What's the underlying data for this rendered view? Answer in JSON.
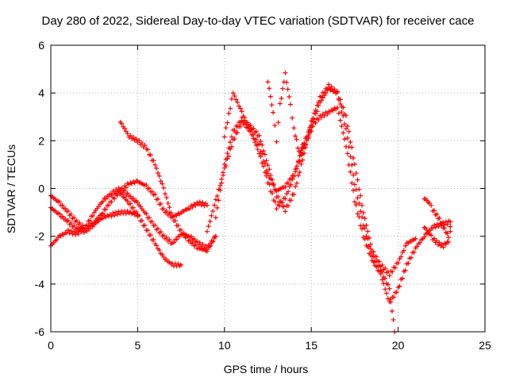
{
  "chart_data": {
    "type": "scatter",
    "title": "Day 280 of 2022, Sidereal Day-to-day VTEC variation (SDTVAR) for receiver cace",
    "xlabel": "GPS time / hours",
    "ylabel": "SDTVAR / TECUs",
    "xlim": [
      0,
      25
    ],
    "ylim": [
      -6,
      6
    ],
    "xticks": [
      0,
      5,
      10,
      15,
      20,
      25
    ],
    "yticks": [
      -6,
      -4,
      -2,
      0,
      2,
      4,
      6
    ],
    "grid": true,
    "marker": "plus",
    "color": "#ff0000",
    "series": [
      {
        "x": [
          0.0,
          0.5,
          1.0,
          1.5,
          2.0,
          2.5,
          3.0,
          3.5,
          4.0,
          4.5,
          5.0,
          5.5,
          6.0,
          6.5,
          7.0,
          7.5,
          8.0,
          8.5,
          9.0
        ],
        "y": [
          -0.3,
          -0.6,
          -1.0,
          -1.4,
          -1.7,
          -1.4,
          -1.0,
          -0.5,
          -0.1,
          0.2,
          0.3,
          0.1,
          -0.3,
          -0.9,
          -1.2,
          -1.0,
          -0.8,
          -0.6,
          -0.7
        ]
      },
      {
        "x": [
          0.0,
          0.5,
          1.0,
          1.5,
          2.0,
          2.5,
          3.0,
          3.5,
          4.0,
          4.5,
          5.0
        ],
        "y": [
          -0.8,
          -1.1,
          -1.4,
          -1.7,
          -1.8,
          -1.5,
          -1.2,
          -1.1,
          -1.0,
          -1.0,
          -1.1
        ]
      },
      {
        "x": [
          0.0,
          0.5,
          1.0,
          1.5,
          2.0,
          2.5,
          3.0,
          3.5,
          4.0,
          4.5,
          5.0,
          5.5,
          6.0,
          6.5,
          7.0,
          7.5,
          8.0,
          8.5,
          9.0,
          9.5
        ],
        "y": [
          -2.4,
          -2.0,
          -1.8,
          -1.9,
          -1.6,
          -1.0,
          -0.5,
          -0.2,
          0.0,
          -0.3,
          -0.6,
          -1.1,
          -1.6,
          -2.0,
          -2.3,
          -1.9,
          -2.0,
          -2.3,
          -2.5,
          -2.0
        ]
      },
      {
        "x": [
          4.0,
          4.5,
          5.0,
          5.5,
          6.0,
          6.5,
          7.0,
          7.5
        ],
        "y": [
          -0.2,
          -0.6,
          -1.1,
          -1.7,
          -2.3,
          -2.9,
          -3.2,
          -3.2
        ]
      },
      {
        "x": [
          4.0,
          4.5,
          5.0,
          5.5,
          6.0,
          6.5,
          7.0,
          7.5,
          8.0,
          8.5,
          9.0,
          9.5
        ],
        "y": [
          2.8,
          2.2,
          2.0,
          1.7,
          1.0,
          0.0,
          -1.2,
          -1.8,
          -2.2,
          -2.5,
          -2.6,
          -2.0
        ]
      },
      {
        "x": [
          9.0,
          9.5,
          10.0,
          10.5,
          11.0,
          11.5,
          12.0,
          12.5,
          13.0,
          13.5,
          14.0,
          14.5,
          15.0,
          15.5,
          16.0,
          16.5,
          17.0,
          17.5,
          18.0,
          18.5,
          19.0,
          19.5,
          20.0,
          20.5,
          21.0,
          21.5,
          22.0,
          22.5,
          23.0
        ],
        "y": [
          -1.8,
          -0.5,
          0.8,
          2.0,
          2.8,
          2.4,
          1.5,
          0.3,
          -0.8,
          -0.4,
          0.5,
          1.8,
          2.6,
          3.0,
          3.2,
          3.4,
          1.8,
          -0.5,
          -2.0,
          -3.0,
          -3.6,
          -4.8,
          -4.2,
          -3.2,
          -2.5,
          -2.0,
          -1.6,
          -1.5,
          -1.4
        ]
      },
      {
        "x": [
          9.5,
          10.0,
          10.5,
          11.0,
          11.5,
          12.0,
          12.5,
          13.0,
          13.5,
          14.0,
          14.5,
          15.0,
          15.5,
          16.0,
          16.5,
          17.0,
          17.5,
          18.0,
          18.5,
          19.0,
          19.5,
          19.8
        ],
        "y": [
          -1.2,
          1.0,
          2.4,
          2.9,
          2.6,
          2.2,
          1.0,
          -0.3,
          -0.9,
          -0.2,
          1.2,
          2.8,
          3.8,
          4.3,
          4.0,
          2.5,
          0.2,
          -1.5,
          -2.8,
          -3.4,
          -4.2,
          -6.0
        ]
      },
      {
        "x": [
          10.0,
          10.5,
          11.0,
          11.5,
          12.0,
          12.5,
          13.0,
          13.5,
          14.0,
          14.5,
          15.0,
          15.5,
          16.0,
          16.5,
          17.0,
          17.5,
          18.0,
          18.5,
          19.0,
          19.5,
          20.0,
          20.5,
          21.0
        ],
        "y": [
          2.2,
          4.0,
          3.2,
          2.4,
          1.8,
          0.6,
          -0.1,
          0.1,
          0.6,
          1.5,
          2.6,
          3.6,
          4.2,
          4.0,
          3.0,
          1.0,
          -1.0,
          -2.6,
          -3.2,
          -3.6,
          -3.1,
          -2.3,
          -2.1
        ]
      },
      {
        "x": [
          12.5,
          12.8,
          13.0,
          13.2,
          13.5,
          13.8,
          14.0,
          14.3,
          14.6,
          15.0
        ],
        "y": [
          4.5,
          3.2,
          2.0,
          3.5,
          4.8,
          3.5,
          2.5,
          1.5,
          1.8,
          2.4
        ]
      },
      {
        "x": [
          21.5,
          21.8,
          22.0,
          22.3,
          22.6,
          22.9,
          23.0
        ],
        "y": [
          -0.4,
          -0.6,
          -0.9,
          -1.2,
          -1.6,
          -2.0,
          -1.8
        ]
      },
      {
        "x": [
          21.5,
          21.8,
          22.0,
          22.3,
          22.6,
          22.9,
          23.0
        ],
        "y": [
          -1.6,
          -1.9,
          -2.1,
          -2.3,
          -2.4,
          -2.2,
          -1.6
        ]
      }
    ]
  }
}
